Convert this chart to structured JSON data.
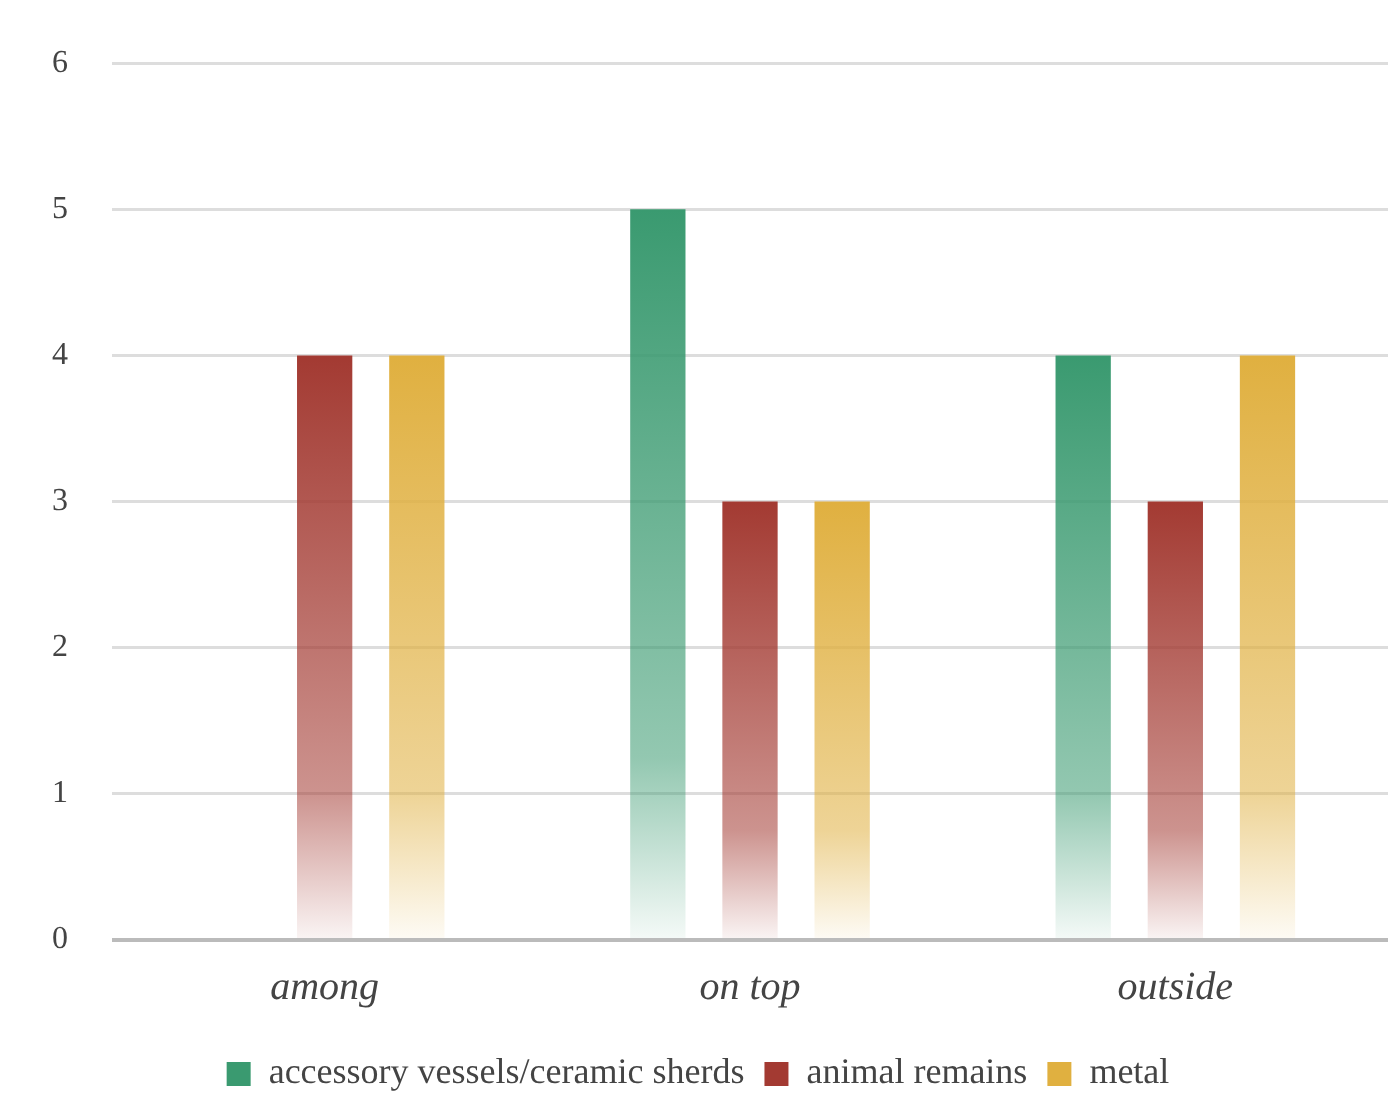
{
  "chart_data": {
    "type": "bar",
    "categories": [
      "among",
      "on top",
      "outside"
    ],
    "series": [
      {
        "name": "accessory vessels/ceramic sherds",
        "color": "#3a9a70",
        "values": [
          0,
          5,
          4
        ]
      },
      {
        "name": "animal remains",
        "color": "#a33a32",
        "values": [
          4,
          3,
          3
        ]
      },
      {
        "name": "metal",
        "color": "#e0b040",
        "values": [
          4,
          3,
          4
        ]
      }
    ],
    "ylim": [
      0,
      6
    ],
    "yticks": [
      0,
      1,
      2,
      3,
      4,
      5,
      6
    ],
    "grid": "y",
    "legend": "bottom"
  }
}
